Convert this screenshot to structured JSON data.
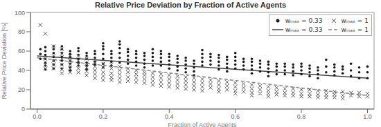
{
  "chart_data": {
    "type": "scatter",
    "title": "Relative Price Deviation by Fraction of Active Agents",
    "xlabel": "Fraction of Active Agents",
    "ylabel": "Relative Price Deviation [%]",
    "xlim": [
      -0.02,
      1.02
    ],
    "ylim": [
      0,
      100
    ],
    "xticks": [
      {
        "value": 0.0,
        "label": "0.0"
      },
      0.2,
      0.4,
      0.6,
      0.8,
      {
        "value": 1.0,
        "label": "1.0"
      }
    ],
    "yticks": [
      0,
      20,
      40,
      60,
      80,
      100
    ],
    "grid": false,
    "legend": "upper right",
    "series": [
      {
        "name": "wₘₐₓ = 0.33",
        "type": "scatter",
        "marker": "o",
        "color": "#1a1a1a",
        "x": [
          0.01,
          0.01,
          0.01,
          0.025,
          0.025,
          0.025,
          0.025,
          0.025,
          0.025,
          0.025,
          0.05,
          0.05,
          0.05,
          0.05,
          0.05,
          0.05,
          0.05,
          0.075,
          0.075,
          0.075,
          0.075,
          0.075,
          0.075,
          0.075,
          0.1,
          0.1,
          0.1,
          0.1,
          0.1,
          0.1,
          0.1,
          0.125,
          0.125,
          0.125,
          0.125,
          0.125,
          0.125,
          0.15,
          0.15,
          0.15,
          0.15,
          0.15,
          0.15,
          0.175,
          0.175,
          0.175,
          0.175,
          0.175,
          0.2,
          0.2,
          0.2,
          0.2,
          0.2,
          0.2,
          0.2,
          0.225,
          0.225,
          0.225,
          0.225,
          0.225,
          0.25,
          0.25,
          0.25,
          0.25,
          0.25,
          0.25,
          0.275,
          0.275,
          0.275,
          0.275,
          0.275,
          0.3,
          0.3,
          0.3,
          0.3,
          0.3,
          0.325,
          0.325,
          0.325,
          0.325,
          0.325,
          0.35,
          0.35,
          0.35,
          0.35,
          0.35,
          0.375,
          0.375,
          0.375,
          0.375,
          0.375,
          0.4,
          0.4,
          0.4,
          0.4,
          0.4,
          0.425,
          0.425,
          0.425,
          0.425,
          0.425,
          0.45,
          0.45,
          0.45,
          0.45,
          0.45,
          0.475,
          0.475,
          0.475,
          0.475,
          0.475,
          0.5,
          0.5,
          0.5,
          0.5,
          0.5,
          0.525,
          0.525,
          0.525,
          0.525,
          0.55,
          0.55,
          0.55,
          0.55,
          0.55,
          0.575,
          0.575,
          0.575,
          0.575,
          0.575,
          0.6,
          0.6,
          0.6,
          0.6,
          0.6,
          0.625,
          0.625,
          0.625,
          0.625,
          0.65,
          0.65,
          0.65,
          0.65,
          0.65,
          0.675,
          0.675,
          0.675,
          0.675,
          0.7,
          0.7,
          0.7,
          0.7,
          0.7,
          0.725,
          0.725,
          0.725,
          0.725,
          0.75,
          0.75,
          0.75,
          0.75,
          0.775,
          0.775,
          0.775,
          0.775,
          0.8,
          0.8,
          0.8,
          0.8,
          0.825,
          0.825,
          0.825,
          0.825,
          0.85,
          0.85,
          0.85,
          0.85,
          0.875,
          0.875,
          0.875,
          0.9,
          0.9,
          0.9,
          0.9,
          0.925,
          0.925,
          0.925,
          0.95,
          0.95,
          0.95,
          0.975,
          0.975,
          0.975,
          1.0,
          1.0,
          1.0
        ],
        "values": [
          62,
          57,
          52,
          64,
          60,
          56,
          52,
          48,
          45,
          41,
          65,
          62,
          58,
          54,
          50,
          46,
          42,
          65,
          62,
          58,
          54,
          50,
          46,
          42,
          60,
          57,
          54,
          50,
          47,
          43,
          40,
          63,
          60,
          56,
          52,
          48,
          45,
          58,
          55,
          52,
          48,
          45,
          41,
          60,
          57,
          53,
          49,
          46,
          68,
          65,
          62,
          57,
          52,
          47,
          43,
          60,
          57,
          53,
          49,
          45,
          70,
          67,
          63,
          58,
          53,
          48,
          62,
          59,
          55,
          51,
          47,
          60,
          57,
          53,
          49,
          45,
          58,
          55,
          51,
          47,
          43,
          62,
          58,
          54,
          50,
          45,
          60,
          57,
          53,
          49,
          45,
          57,
          54,
          50,
          46,
          42,
          55,
          52,
          48,
          44,
          40,
          53,
          50,
          46,
          42,
          38,
          50,
          47,
          43,
          39,
          35,
          61,
          57,
          53,
          49,
          45,
          57,
          54,
          50,
          46,
          56,
          53,
          49,
          45,
          41,
          54,
          51,
          47,
          43,
          39,
          58,
          54,
          50,
          46,
          42,
          52,
          49,
          45,
          41,
          52,
          49,
          45,
          41,
          37,
          50,
          47,
          43,
          39,
          49,
          46,
          42,
          38,
          34,
          47,
          44,
          40,
          36,
          47,
          44,
          40,
          36,
          46,
          43,
          39,
          35,
          47,
          44,
          40,
          36,
          45,
          42,
          38,
          34,
          43,
          40,
          36,
          32,
          51,
          44,
          38,
          46,
          43,
          39,
          35,
          44,
          41,
          37,
          47,
          40,
          34,
          43,
          38,
          32,
          44,
          38,
          32
        ]
      },
      {
        "name": "wₘₐₓ = 1",
        "type": "scatter",
        "marker": "x",
        "color": "#555555",
        "x": [
          0.01,
          0.025,
          0.025,
          0.025,
          0.025,
          0.05,
          0.05,
          0.05,
          0.05,
          0.05,
          0.075,
          0.075,
          0.075,
          0.075,
          0.075,
          0.075,
          0.1,
          0.1,
          0.1,
          0.1,
          0.1,
          0.125,
          0.125,
          0.125,
          0.125,
          0.125,
          0.15,
          0.15,
          0.15,
          0.15,
          0.15,
          0.175,
          0.175,
          0.175,
          0.175,
          0.175,
          0.2,
          0.2,
          0.2,
          0.2,
          0.2,
          0.225,
          0.225,
          0.225,
          0.225,
          0.225,
          0.25,
          0.25,
          0.25,
          0.25,
          0.25,
          0.275,
          0.275,
          0.275,
          0.275,
          0.3,
          0.3,
          0.3,
          0.3,
          0.325,
          0.325,
          0.325,
          0.325,
          0.35,
          0.35,
          0.35,
          0.35,
          0.375,
          0.375,
          0.375,
          0.375,
          0.4,
          0.4,
          0.4,
          0.4,
          0.425,
          0.425,
          0.425,
          0.425,
          0.45,
          0.45,
          0.45,
          0.45,
          0.475,
          0.475,
          0.475,
          0.475,
          0.5,
          0.5,
          0.5,
          0.5,
          0.525,
          0.525,
          0.525,
          0.55,
          0.55,
          0.55,
          0.55,
          0.575,
          0.575,
          0.575,
          0.6,
          0.6,
          0.6,
          0.6,
          0.625,
          0.625,
          0.625,
          0.65,
          0.65,
          0.65,
          0.65,
          0.675,
          0.675,
          0.675,
          0.7,
          0.7,
          0.7,
          0.7,
          0.725,
          0.725,
          0.725,
          0.75,
          0.75,
          0.75,
          0.775,
          0.775,
          0.775,
          0.8,
          0.8,
          0.8,
          0.825,
          0.825,
          0.825,
          0.85,
          0.85,
          0.85,
          0.875,
          0.875,
          0.875,
          0.9,
          0.9,
          0.9,
          0.925,
          0.925,
          0.925,
          0.95,
          0.95,
          0.975,
          0.975,
          1.0,
          1.0
        ],
        "values": [
          87,
          78,
          52,
          46,
          42,
          65,
          55,
          50,
          46,
          42,
          62,
          57,
          52,
          46,
          41,
          37,
          55,
          50,
          46,
          42,
          38,
          55,
          50,
          46,
          42,
          38,
          52,
          47,
          43,
          39,
          35,
          48,
          44,
          40,
          36,
          32,
          47,
          43,
          38,
          34,
          30,
          46,
          42,
          37,
          33,
          30,
          44,
          40,
          36,
          32,
          28,
          42,
          38,
          33,
          29,
          40,
          36,
          32,
          28,
          38,
          35,
          31,
          27,
          37,
          33,
          29,
          25,
          36,
          32,
          28,
          24,
          35,
          31,
          27,
          23,
          34,
          30,
          26,
          22,
          33,
          29,
          25,
          21,
          32,
          28,
          24,
          20,
          31,
          27,
          23,
          19,
          30,
          26,
          22,
          29,
          25,
          21,
          18,
          28,
          24,
          20,
          27,
          23,
          19,
          16,
          26,
          22,
          18,
          25,
          21,
          17,
          14,
          24,
          20,
          16,
          23,
          19,
          16,
          13,
          22,
          18,
          15,
          21,
          17,
          14,
          21,
          17,
          14,
          20,
          16,
          13,
          20,
          16,
          13,
          19,
          15,
          12,
          19,
          15,
          12,
          18,
          15,
          12,
          18,
          14,
          11,
          17,
          14,
          17,
          13,
          16,
          13
        ]
      },
      {
        "name": "wₘₐₓ = 0.33",
        "type": "line",
        "line_style": "solid",
        "color": "#444444",
        "x": [
          0.0,
          1.0
        ],
        "values": [
          55.0,
          32.0
        ]
      },
      {
        "name": "wₘₐₓ = 1",
        "type": "line",
        "line_style": "dashed",
        "color": "#888888",
        "x": [
          0.0,
          1.0
        ],
        "values": [
          53.0,
          14.0
        ]
      }
    ]
  }
}
